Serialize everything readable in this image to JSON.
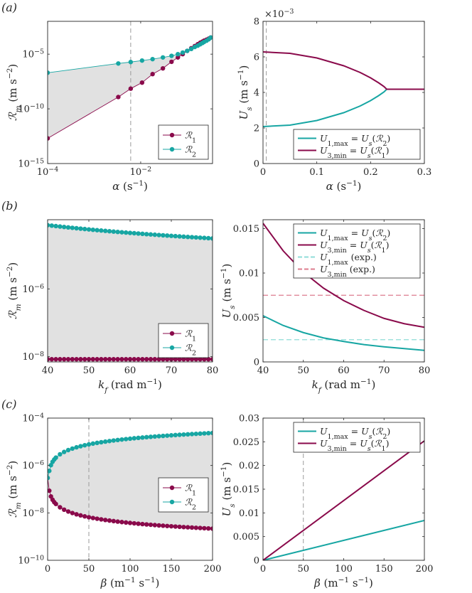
{
  "colors": {
    "r1": "#8a0a4b",
    "r2": "#17a6a3",
    "shade": "#e1e1e1",
    "axis": "#262626",
    "vline": "#9a9a9a",
    "exp1": "#8fdcd8",
    "exp3": "#dd7c8e"
  },
  "panel_labels": [
    "(a)",
    "(b)",
    "(c)"
  ],
  "chart_data": [
    {
      "id": "a-left",
      "type": "scatter",
      "xscale": "log",
      "yscale": "log",
      "xlim": [
        0.0001,
        0.35
      ],
      "ylim": [
        1e-15,
        0.01
      ],
      "xticks": [
        {
          "v": 0.0001,
          "label": "10",
          "exp": "−4"
        },
        {
          "v": 0.01,
          "label": "10",
          "exp": "−2"
        }
      ],
      "yticks": [
        {
          "v": 1e-15,
          "label": "10",
          "exp": "−15"
        },
        {
          "v": 1e-10,
          "label": "10",
          "exp": "−10"
        },
        {
          "v": 1e-05,
          "label": "10",
          "exp": "−5"
        }
      ],
      "xlabel": "α (s⁻¹)",
      "ylabel": "ℛm (m s⁻²)",
      "legend": "bottom-right",
      "vline": 0.0061,
      "shade": true,
      "series": [
        {
          "name": "ℛ1",
          "x": [
            0.0001,
            0.0033,
            0.0061,
            0.0107,
            0.018,
            0.03,
            0.046,
            0.063,
            0.08,
            0.1,
            0.122,
            0.145,
            0.168,
            0.19,
            0.212,
            0.23,
            0.26,
            0.29,
            0.32
          ],
          "y": [
            2e-13,
            1.2e-09,
            7e-09,
            2.5e-08,
            1.5e-07,
            5e-07,
            2e-06,
            5e-06,
            1e-05,
            2e-05,
            3.5e-05,
            5.5e-05,
            8e-05,
            0.00011,
            0.00014,
            0.00017,
            0.00021,
            0.00026,
            0.00033
          ]
        },
        {
          "name": "ℛ2",
          "x": [
            0.0001,
            0.0033,
            0.0061,
            0.0107,
            0.018,
            0.03,
            0.046,
            0.063,
            0.08,
            0.1,
            0.122,
            0.145,
            0.168,
            0.19,
            0.212,
            0.23,
            0.26,
            0.29,
            0.32
          ],
          "y": [
            2e-07,
            1.4e-06,
            1.9e-06,
            2.6e-06,
            3.5e-06,
            5e-06,
            7e-06,
            1e-05,
            1.4e-05,
            2e-05,
            3e-05,
            4.5e-05,
            6e-05,
            8e-05,
            0.000105,
            0.00013,
            0.00017,
            0.00023,
            0.00033
          ]
        }
      ]
    },
    {
      "id": "a-right",
      "type": "line",
      "xlim": [
        0,
        0.3
      ],
      "ylim": [
        0,
        8
      ],
      "xticks": [
        {
          "v": 0,
          "label": "0"
        },
        {
          "v": 0.1,
          "label": "0.1"
        },
        {
          "v": 0.2,
          "label": "0.2"
        },
        {
          "v": 0.3,
          "label": "0.3"
        }
      ],
      "yticks": [
        {
          "v": 0,
          "label": "0"
        },
        {
          "v": 2,
          "label": "2"
        },
        {
          "v": 4,
          "label": "4"
        },
        {
          "v": 6,
          "label": "6"
        },
        {
          "v": 8,
          "label": "8"
        }
      ],
      "multiplier": "×10",
      "multiplier_exp": "−3",
      "xlabel": "α (s⁻¹)",
      "ylabel": "Us (m s⁻¹)",
      "legend": "bottom-right",
      "vline": 0.0061,
      "series": [
        {
          "name": "U1,max = Us(ℛ2)",
          "x": [
            0,
            0.05,
            0.1,
            0.15,
            0.18,
            0.2,
            0.215,
            0.225,
            0.23,
            0.26,
            0.3
          ],
          "y": [
            2.08,
            2.16,
            2.42,
            2.86,
            3.23,
            3.54,
            3.82,
            4.03,
            4.18,
            4.18,
            4.18
          ]
        },
        {
          "name": "U3,min = Us(ℛ1)",
          "x": [
            0,
            0.05,
            0.1,
            0.15,
            0.18,
            0.2,
            0.215,
            0.225,
            0.23,
            0.26,
            0.3
          ],
          "y": [
            6.28,
            6.2,
            5.94,
            5.5,
            5.13,
            4.82,
            4.54,
            4.33,
            4.18,
            4.18,
            4.18
          ]
        }
      ]
    },
    {
      "id": "b-left",
      "type": "scatter",
      "yscale": "log",
      "xlim": [
        40,
        80
      ],
      "ylim": [
        7e-09,
        0.00011
      ],
      "xticks": [
        {
          "v": 40,
          "label": "40"
        },
        {
          "v": 50,
          "label": "50"
        },
        {
          "v": 60,
          "label": "60"
        },
        {
          "v": 70,
          "label": "70"
        },
        {
          "v": 80,
          "label": "80"
        }
      ],
      "yticks": [
        {
          "v": 1e-08,
          "label": "10",
          "exp": "−8"
        },
        {
          "v": 1e-06,
          "label": "10",
          "exp": "−6"
        }
      ],
      "xlabel": "kf (rad m⁻¹)",
      "ylabel": "ℛm (m s⁻²)",
      "legend": "bottom-right",
      "shade": true,
      "series": [
        {
          "name": "ℛ1",
          "x_start": 40,
          "x_end": 80,
          "count": 41,
          "law": "constant",
          "y0": 8.4e-09
        },
        {
          "name": "ℛ2",
          "x_start": 40,
          "x_end": 80,
          "count": 41,
          "law": "power",
          "y0": 7.6e-05,
          "p": -1.3
        }
      ]
    },
    {
      "id": "b-right",
      "type": "line",
      "xlim": [
        40,
        80
      ],
      "ylim": [
        0,
        0.016
      ],
      "xticks": [
        {
          "v": 40,
          "label": "40"
        },
        {
          "v": 50,
          "label": "50"
        },
        {
          "v": 60,
          "label": "60"
        },
        {
          "v": 70,
          "label": "70"
        },
        {
          "v": 80,
          "label": "80"
        }
      ],
      "yticks": [
        {
          "v": 0,
          "label": "0"
        },
        {
          "v": 0.005,
          "label": "0.005"
        },
        {
          "v": 0.01,
          "label": "0.01"
        },
        {
          "v": 0.015,
          "label": "0.015"
        }
      ],
      "xlabel": "kf (rad m⁻¹)",
      "ylabel": "Us (m s⁻¹)",
      "legend": "top-right",
      "series": [
        {
          "name": "U1,max = Us(ℛ2)",
          "x": [
            40,
            45,
            50,
            55,
            60,
            65,
            70,
            75,
            80
          ],
          "y": [
            0.0052,
            0.0041,
            0.0033,
            0.0027,
            0.0023,
            0.00195,
            0.0017,
            0.0015,
            0.0013
          ]
        },
        {
          "name": "U3,min = Us(ℛ1)",
          "x": [
            40,
            45,
            50,
            55,
            60,
            65,
            70,
            75,
            80
          ],
          "y": [
            0.0156,
            0.0125,
            0.0101,
            0.0083,
            0.0069,
            0.0058,
            0.0049,
            0.0043,
            0.0039
          ]
        }
      ],
      "hlines": [
        {
          "name": "U1,max (exp.)",
          "y": 0.0025
        },
        {
          "name": "U3,min (exp.)",
          "y": 0.0075
        }
      ]
    },
    {
      "id": "c-left",
      "type": "scatter",
      "yscale": "log",
      "xlim": [
        0,
        200
      ],
      "ylim": [
        1e-10,
        0.0001
      ],
      "xticks": [
        {
          "v": 0,
          "label": "0"
        },
        {
          "v": 50,
          "label": "50"
        },
        {
          "v": 100,
          "label": "100"
        },
        {
          "v": 150,
          "label": "150"
        },
        {
          "v": 200,
          "label": "200"
        }
      ],
      "yticks": [
        {
          "v": 1e-10,
          "label": "10",
          "exp": "−10"
        },
        {
          "v": 1e-08,
          "label": "10",
          "exp": "−8"
        },
        {
          "v": 1e-06,
          "label": "10",
          "exp": "−6"
        },
        {
          "v": 0.0001,
          "label": "10",
          "exp": "−4"
        }
      ],
      "xlabel": "β (m⁻¹ s⁻¹)",
      "ylabel": "ℛm (m s⁻²)",
      "legend": "middle-right",
      "vline": 50,
      "shade": true,
      "series": [
        {
          "name": "ℛ1",
          "x_points": [
            0,
            2,
            4,
            6,
            8,
            10
          ],
          "x_start": 15,
          "x_end": 200,
          "step": 5,
          "law": "power",
          "y0": 1.5e-07,
          "xref": 1,
          "p": -0.8,
          "first": 3e-07
        },
        {
          "name": "ℛ2",
          "x_points": [
            0,
            2,
            4,
            6,
            8,
            10
          ],
          "x_start": 15,
          "x_end": 200,
          "step": 5,
          "law": "power",
          "y0": 3.4e-07,
          "xref": 1,
          "p": 0.8,
          "first": 3e-07
        }
      ]
    },
    {
      "id": "c-right",
      "type": "line",
      "xlim": [
        0,
        200
      ],
      "ylim": [
        0,
        0.03
      ],
      "xticks": [
        {
          "v": 0,
          "label": "0"
        },
        {
          "v": 50,
          "label": "50"
        },
        {
          "v": 100,
          "label": "100"
        },
        {
          "v": 150,
          "label": "150"
        },
        {
          "v": 200,
          "label": "200"
        }
      ],
      "yticks": [
        {
          "v": 0,
          "label": "0"
        },
        {
          "v": 0.005,
          "label": "0.005"
        },
        {
          "v": 0.01,
          "label": "0.01"
        },
        {
          "v": 0.015,
          "label": "0.015"
        },
        {
          "v": 0.02,
          "label": "0.02"
        },
        {
          "v": 0.025,
          "label": "0.025"
        },
        {
          "v": 0.03,
          "label": "0.03"
        }
      ],
      "xlabel": "β (m⁻¹ s⁻¹)",
      "ylabel": "Us (m s⁻¹)",
      "legend": "top-right",
      "vline": 50,
      "series": [
        {
          "name": "U1,max = Us(ℛ2)",
          "x": [
            0,
            200
          ],
          "y": [
            0,
            0.0084
          ]
        },
        {
          "name": "U3,min = Us(ℛ1)",
          "x": [
            0,
            200
          ],
          "y": [
            0,
            0.0252
          ]
        }
      ]
    }
  ]
}
